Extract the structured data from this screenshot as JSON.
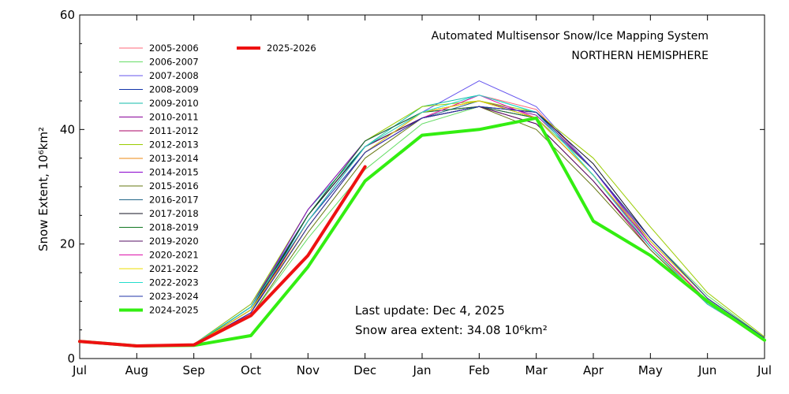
{
  "chart_data": {
    "type": "line",
    "title": "Automated  Multisensor Snow/Ice Mapping System",
    "subtitle": "NORTHERN HEMISPHERE",
    "ylabel": "Snow Extent, 10⁶km²",
    "xlabel": "",
    "categories": [
      "Jul",
      "Aug",
      "Sep",
      "Oct",
      "Nov",
      "Dec",
      "Jan",
      "Feb",
      "Mar",
      "Apr",
      "May",
      "Jun",
      "Jul"
    ],
    "ylim": [
      0,
      60
    ],
    "yticks": [
      "0",
      "20",
      "40",
      "60"
    ],
    "grid": false,
    "legend_placement": "top-left",
    "annotations": {
      "last_update": "Last update: Dec  4, 2025",
      "area_prefix": "Snow area extent: 34.08 ",
      "area_unit": "10⁶km²"
    },
    "series": [
      {
        "name": "2005-2006",
        "color": "#ff6a7a",
        "width": 1,
        "values": [
          3.0,
          2.3,
          2.4,
          9.0,
          25.0,
          37.0,
          42.0,
          46.0,
          43.5,
          33.0,
          20.0,
          10.0,
          3.5
        ]
      },
      {
        "name": "2006-2007",
        "color": "#66dd66",
        "width": 1,
        "values": [
          3.0,
          2.2,
          2.3,
          7.5,
          21.0,
          33.0,
          41.0,
          44.0,
          42.0,
          33.0,
          21.0,
          11.0,
          3.6
        ]
      },
      {
        "name": "2007-2008",
        "color": "#6655ee",
        "width": 1,
        "values": [
          3.0,
          2.3,
          2.5,
          9.5,
          25.0,
          38.0,
          43.0,
          48.5,
          44.0,
          33.0,
          20.0,
          10.0,
          3.5
        ]
      },
      {
        "name": "2008-2009",
        "color": "#1133aa",
        "width": 1,
        "values": [
          3.1,
          2.2,
          2.4,
          8.5,
          24.0,
          36.0,
          43.0,
          45.0,
          42.0,
          32.0,
          20.0,
          10.0,
          3.5
        ]
      },
      {
        "name": "2009-2010",
        "color": "#11bbaa",
        "width": 1,
        "values": [
          3.0,
          2.3,
          2.4,
          9.0,
          26.0,
          37.0,
          44.0,
          46.0,
          43.0,
          32.0,
          19.5,
          9.5,
          3.4
        ]
      },
      {
        "name": "2010-2011",
        "color": "#880099",
        "width": 1,
        "values": [
          3.0,
          2.2,
          2.4,
          8.0,
          23.0,
          36.0,
          43.0,
          45.0,
          42.5,
          33.0,
          20.5,
          10.5,
          3.6
        ]
      },
      {
        "name": "2011-2012",
        "color": "#aa0066",
        "width": 1,
        "values": [
          3.0,
          2.3,
          2.3,
          8.0,
          24.0,
          37.0,
          42.0,
          44.0,
          41.0,
          31.0,
          19.0,
          9.5,
          3.4
        ]
      },
      {
        "name": "2012-2013",
        "color": "#99cc00",
        "width": 1,
        "values": [
          3.0,
          2.2,
          2.5,
          9.5,
          26.0,
          38.0,
          44.0,
          45.0,
          43.0,
          35.0,
          23.0,
          11.5,
          3.8
        ]
      },
      {
        "name": "2013-2014",
        "color": "#ee8811",
        "width": 1,
        "values": [
          3.0,
          2.3,
          2.4,
          8.5,
          24.0,
          37.0,
          43.0,
          45.0,
          42.0,
          32.0,
          19.5,
          10.0,
          3.5
        ]
      },
      {
        "name": "2014-2015",
        "color": "#8800cc",
        "width": 1,
        "values": [
          3.0,
          2.2,
          2.4,
          9.0,
          26.0,
          38.0,
          43.0,
          44.0,
          42.0,
          32.0,
          20.0,
          10.0,
          3.5
        ]
      },
      {
        "name": "2015-2016",
        "color": "#667711",
        "width": 1,
        "values": [
          3.0,
          2.3,
          2.3,
          7.5,
          22.0,
          35.0,
          42.0,
          44.0,
          40.0,
          30.0,
          19.0,
          9.5,
          3.3
        ]
      },
      {
        "name": "2016-2017",
        "color": "#226688",
        "width": 1,
        "values": [
          3.0,
          2.3,
          2.4,
          8.0,
          25.0,
          37.0,
          42.0,
          45.0,
          42.0,
          32.0,
          20.5,
          10.5,
          3.6
        ]
      },
      {
        "name": "2017-2018",
        "color": "#111122",
        "width": 1,
        "values": [
          3.0,
          2.2,
          2.4,
          8.5,
          25.0,
          37.0,
          42.0,
          44.0,
          43.0,
          34.0,
          21.0,
          10.5,
          3.6
        ]
      },
      {
        "name": "2018-2019",
        "color": "#117722",
        "width": 1,
        "values": [
          3.0,
          2.3,
          2.4,
          9.0,
          25.0,
          38.0,
          43.0,
          44.0,
          42.0,
          32.0,
          20.0,
          10.0,
          3.5
        ]
      },
      {
        "name": "2019-2020",
        "color": "#551166",
        "width": 1,
        "values": [
          3.0,
          2.2,
          2.4,
          8.5,
          24.0,
          37.0,
          42.0,
          44.0,
          41.0,
          31.0,
          19.5,
          9.5,
          3.4
        ]
      },
      {
        "name": "2020-2021",
        "color": "#dd11aa",
        "width": 1,
        "values": [
          3.0,
          2.3,
          2.4,
          8.0,
          23.0,
          36.0,
          42.0,
          46.0,
          42.0,
          32.0,
          20.0,
          10.0,
          3.5
        ]
      },
      {
        "name": "2021-2022",
        "color": "#eedd00",
        "width": 1,
        "values": [
          3.0,
          2.2,
          2.4,
          8.5,
          23.0,
          36.0,
          43.0,
          45.0,
          42.0,
          32.0,
          20.5,
          10.5,
          3.6
        ]
      },
      {
        "name": "2022-2023",
        "color": "#22ddcc",
        "width": 1,
        "values": [
          3.0,
          2.3,
          2.5,
          9.0,
          24.0,
          37.0,
          43.0,
          46.0,
          43.0,
          32.0,
          19.5,
          9.5,
          3.4
        ]
      },
      {
        "name": "2023-2024",
        "color": "#2233aa",
        "width": 1,
        "values": [
          3.0,
          2.2,
          2.4,
          8.0,
          23.0,
          36.0,
          42.0,
          44.0,
          43.0,
          33.0,
          21.0,
          10.5,
          3.6
        ]
      },
      {
        "name": "2024-2025",
        "color": "#33ee11",
        "width": 4,
        "values": [
          3.0,
          2.2,
          2.3,
          4.0,
          16.0,
          31.0,
          39.0,
          40.0,
          42.0,
          24.0,
          18.0,
          10.0,
          3.2
        ]
      },
      {
        "name": "2025-2026",
        "color": "#ee1111",
        "width": 4,
        "values": [
          3.0,
          2.2,
          2.4,
          7.5,
          18.0,
          33.5,
          null,
          null,
          null,
          null,
          null,
          null,
          null
        ]
      }
    ]
  }
}
